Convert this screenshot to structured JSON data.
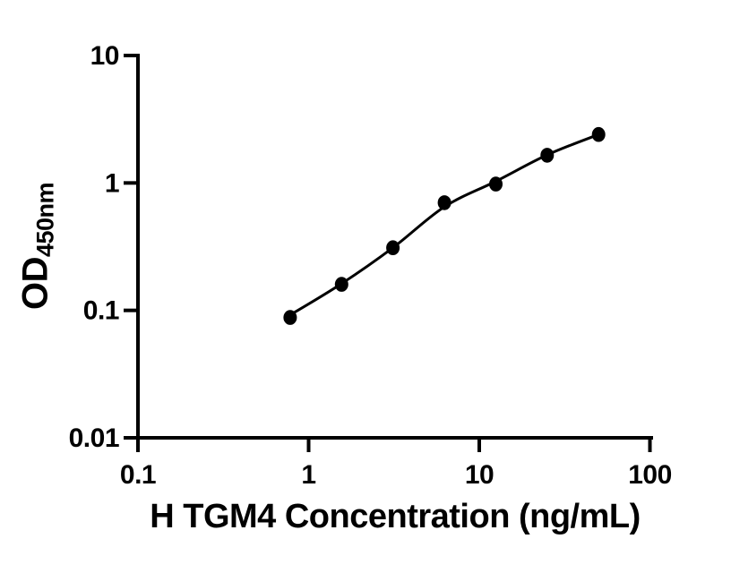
{
  "chart_data": {
    "type": "scatter",
    "title": "",
    "xlabel": "H TGM4 Concentration (ng/mL)",
    "ylabel_main": "OD",
    "ylabel_sub": "450nm",
    "x_scale": "log",
    "y_scale": "log",
    "xlim": [
      0.1,
      100
    ],
    "ylim": [
      0.01,
      10
    ],
    "x_ticks": [
      "0.1",
      "1",
      "10",
      "100"
    ],
    "y_ticks": [
      "10",
      "1",
      "0.1",
      "0.01"
    ],
    "grid": false,
    "legend": false,
    "color": "#000000",
    "series": [
      {
        "name": "H TGM4 standard points",
        "marker": "filled-circle",
        "x": [
          0.78,
          1.56,
          3.12,
          6.25,
          12.5,
          25,
          50
        ],
        "od": [
          0.088,
          0.16,
          0.31,
          0.7,
          0.98,
          1.65,
          2.4
        ]
      },
      {
        "name": "fit-curve",
        "type": "line",
        "x": [
          0.78,
          1.56,
          3.12,
          6.25,
          12.5,
          25,
          50
        ],
        "od": [
          0.092,
          0.162,
          0.31,
          0.65,
          1.03,
          1.66,
          2.4
        ]
      }
    ]
  }
}
